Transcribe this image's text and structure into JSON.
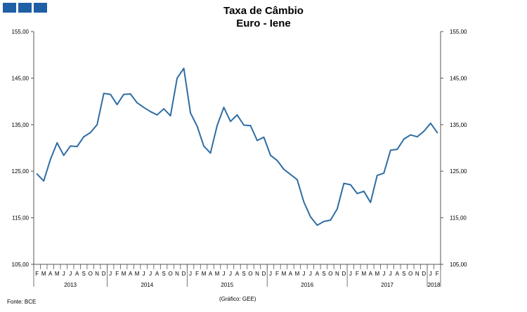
{
  "logo": {
    "colors": [
      "#1f5fa6",
      "#1f5fa6",
      "#1f5fa6"
    ]
  },
  "title_line1": "Taxa de Câmbio",
  "title_line2": "Euro - Iene",
  "source_note": "Fonte: BCE",
  "credit_note": "(Gráfico: GEE)",
  "chart_data": {
    "type": "line",
    "title": "Taxa de Câmbio Euro - Iene",
    "xlabel": "",
    "ylabel": "",
    "ylim": [
      105,
      155
    ],
    "y_ticks": [
      105,
      115,
      125,
      135,
      145,
      155
    ],
    "y_tick_labels": [
      "105,00",
      "115,00",
      "125,00",
      "135,00",
      "145,00",
      "155,00"
    ],
    "month_labels": [
      "F",
      "M",
      "A",
      "M",
      "J",
      "J",
      "A",
      "S",
      "O",
      "N",
      "D",
      "J",
      "F",
      "M",
      "A",
      "M",
      "J",
      "J",
      "A",
      "S",
      "O",
      "N",
      "D",
      "J",
      "F",
      "M",
      "A",
      "M",
      "J",
      "J",
      "A",
      "S",
      "O",
      "N",
      "D",
      "J",
      "F",
      "M",
      "A",
      "M",
      "J",
      "J",
      "A",
      "S",
      "O",
      "N",
      "D",
      "J",
      "F",
      "M",
      "A",
      "M",
      "J",
      "J",
      "A",
      "S",
      "O",
      "N",
      "D",
      "J",
      "F"
    ],
    "years": [
      {
        "label": "2013",
        "months": 11
      },
      {
        "label": "2014",
        "months": 12
      },
      {
        "label": "2015",
        "months": 12
      },
      {
        "label": "2016",
        "months": 12
      },
      {
        "label": "2017",
        "months": 12
      },
      {
        "label": "2018",
        "months": 2
      }
    ],
    "series": [
      {
        "name": "Euro - Iene",
        "color": "#2e6da4",
        "values": [
          124.4,
          122.9,
          127.5,
          131.1,
          128.4,
          130.4,
          130.3,
          132.4,
          133.3,
          135.0,
          141.7,
          141.5,
          139.3,
          141.5,
          141.6,
          139.7,
          138.7,
          137.8,
          137.1,
          138.4,
          136.9,
          145.0,
          147.1,
          137.5,
          134.7,
          130.4,
          128.9,
          134.8,
          138.7,
          135.7,
          137.1,
          134.9,
          134.8,
          131.6,
          132.3,
          128.4,
          127.3,
          125.4,
          124.3,
          123.2,
          118.4,
          115.2,
          113.4,
          114.2,
          114.5,
          116.9,
          122.4,
          122.1,
          120.2,
          120.7,
          118.3,
          124.1,
          124.6,
          129.5,
          129.7,
          131.9,
          132.8,
          132.4,
          133.6,
          135.3,
          133.3
        ]
      }
    ]
  }
}
